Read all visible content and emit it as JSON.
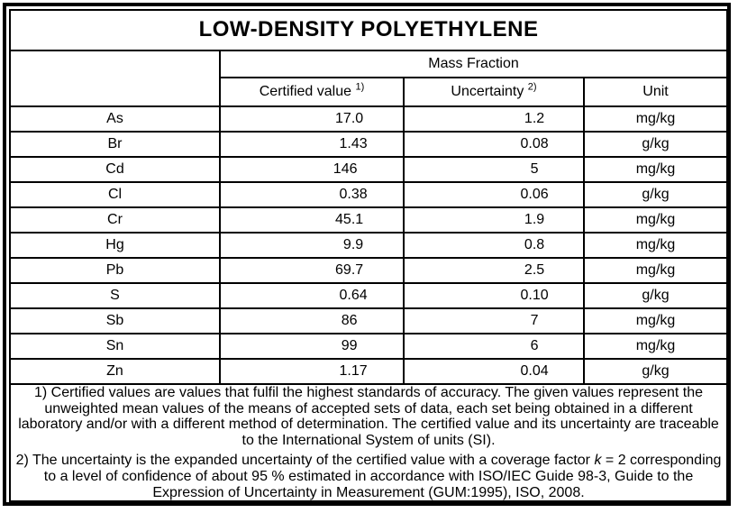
{
  "title": "LOW-DENSITY POLYETHYLENE",
  "colors": {
    "background": "#ffffff",
    "border": "#000000",
    "text": "#000000"
  },
  "table": {
    "span_header": "Mass Fraction",
    "columns": {
      "certified": {
        "label": "Certified value",
        "sup": "1)"
      },
      "uncertainty": {
        "label": "Uncertainty",
        "sup": "2)"
      },
      "unit": {
        "label": "Unit"
      }
    },
    "rows": [
      {
        "element": "As",
        "certified_value": "17.0",
        "uncertainty": "1.2",
        "unit": "mg/kg"
      },
      {
        "element": "Br",
        "certified_value": "1.43",
        "uncertainty": "0.08",
        "unit": "g/kg"
      },
      {
        "element": "Cd",
        "certified_value": "146",
        "uncertainty": "5",
        "unit": "mg/kg"
      },
      {
        "element": "Cl",
        "certified_value": "0.38",
        "uncertainty": "0.06",
        "unit": "g/kg"
      },
      {
        "element": "Cr",
        "certified_value": "45.1",
        "uncertainty": "1.9",
        "unit": "mg/kg"
      },
      {
        "element": "Hg",
        "certified_value": "9.9",
        "uncertainty": "0.8",
        "unit": "mg/kg"
      },
      {
        "element": "Pb",
        "certified_value": "69.7",
        "uncertainty": "2.5",
        "unit": "mg/kg"
      },
      {
        "element": "S",
        "certified_value": "0.64",
        "uncertainty": "0.10",
        "unit": "g/kg"
      },
      {
        "element": "Sb",
        "certified_value": "86",
        "uncertainty": "7",
        "unit": "mg/kg"
      },
      {
        "element": "Sn",
        "certified_value": "99",
        "uncertainty": "6",
        "unit": "mg/kg"
      },
      {
        "element": "Zn",
        "certified_value": "1.17",
        "uncertainty": "0.04",
        "unit": "g/kg"
      }
    ]
  },
  "footnotes": [
    {
      "segments": [
        {
          "text": "1) Certified values are values that fulfil the highest standards of accuracy. The given values represent the unweighted mean values of the means of accepted sets of data, each set being obtained in a different laboratory and/or with a different method of determination. The certified value and its uncertainty are traceable to the International System of units (SI)."
        }
      ]
    },
    {
      "segments": [
        {
          "text": "2) The uncertainty is the expanded uncertainty of the certified value with a coverage factor "
        },
        {
          "text": "k",
          "italic": true
        },
        {
          "text": " = 2 corresponding to a level of confidence of about 95 % estimated in accordance with ISO/IEC Guide 98-3, Guide to the Expression of Uncertainty in Measurement (GUM:1995), ISO, 2008."
        }
      ]
    }
  ]
}
